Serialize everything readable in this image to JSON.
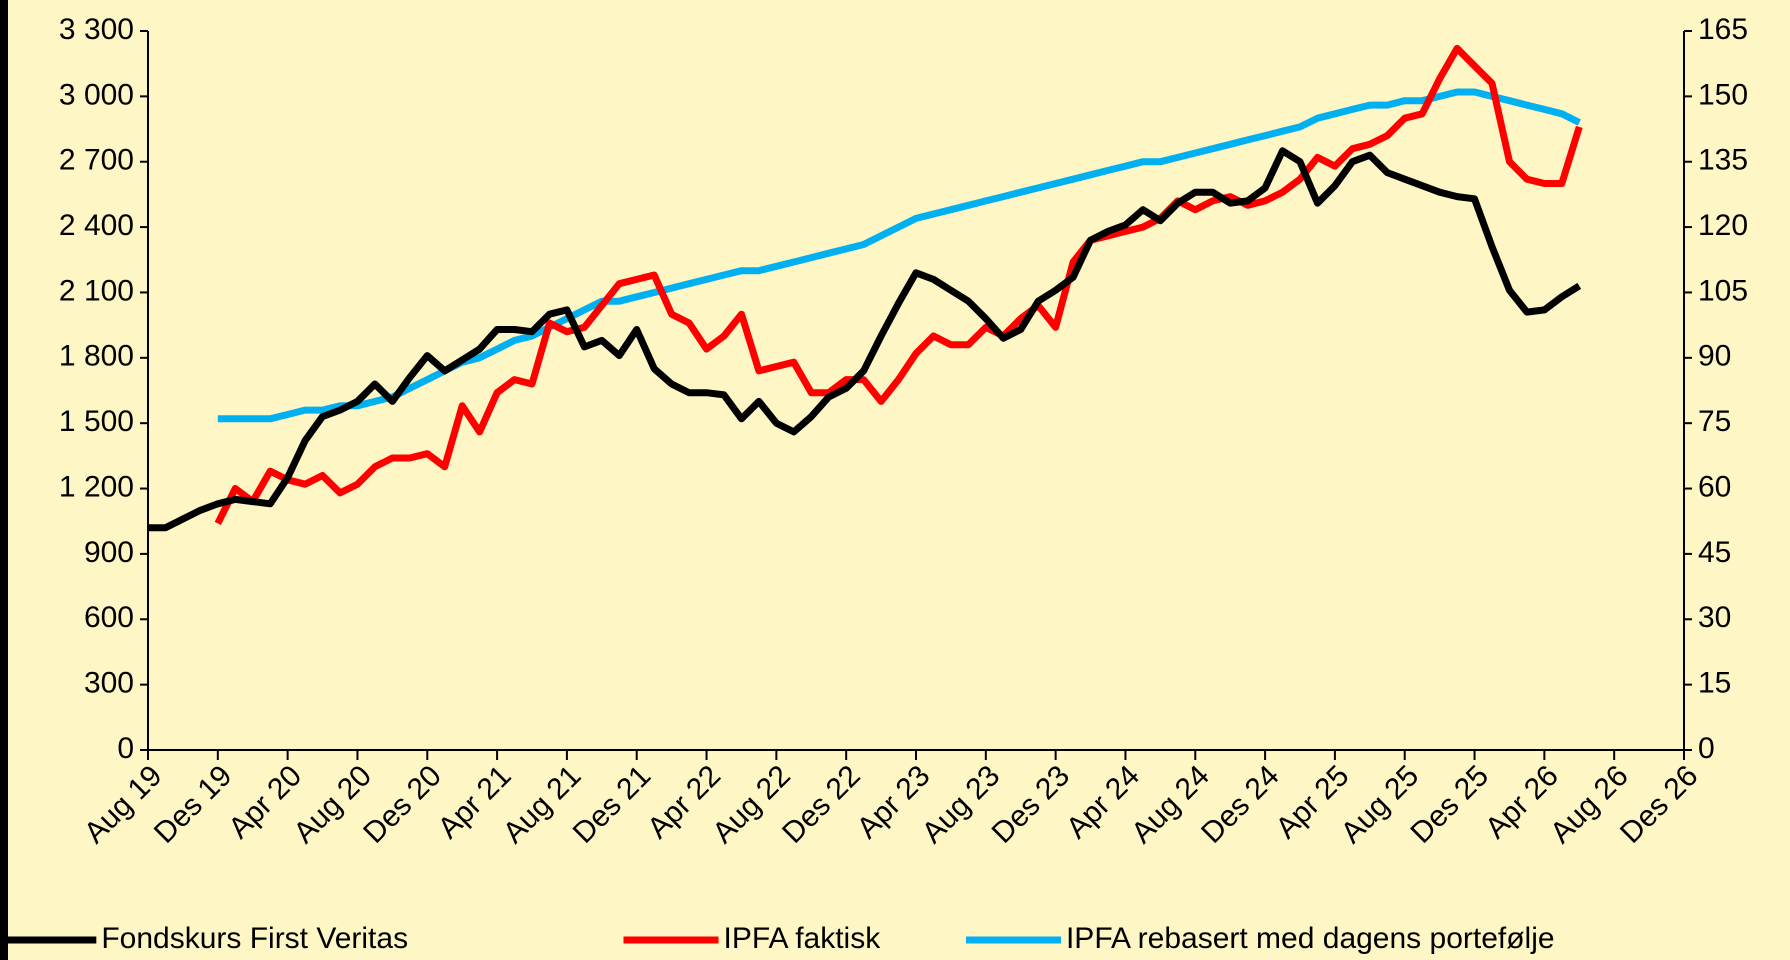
{
  "chart_data": {
    "type": "line",
    "categories": [
      "Aug 19",
      null,
      null,
      null,
      "Des 19",
      null,
      null,
      null,
      "Apr 20",
      null,
      null,
      null,
      "Aug 20",
      null,
      null,
      null,
      "Des 20",
      null,
      null,
      null,
      "Apr 21",
      null,
      null,
      null,
      "Aug 21",
      null,
      null,
      null,
      "Des 21",
      null,
      null,
      null,
      "Apr 22",
      null,
      null,
      null,
      "Aug 22",
      null,
      null,
      null,
      "Des 22",
      null,
      null,
      null,
      "Apr 23",
      null,
      null,
      null,
      "Aug 23",
      null,
      null,
      null,
      "Des 23",
      null,
      null,
      null,
      "Apr 24",
      null,
      null,
      null,
      "Aug 24",
      null,
      null,
      null,
      "Des 24",
      null,
      null,
      null,
      "Apr 25",
      null,
      null,
      null,
      "Aug 25",
      null,
      null,
      null,
      "Des 25",
      null,
      null,
      null,
      "Apr 26",
      null,
      null,
      null,
      "Aug 26",
      null,
      null,
      null,
      "Des 26"
    ],
    "series": [
      {
        "name": "Fondskurs First Veritas",
        "color": "#000000",
        "values": [
          1020,
          1020,
          1060,
          1100,
          1130,
          1150,
          1140,
          1130,
          1250,
          1420,
          1530,
          1560,
          1600,
          1680,
          1600,
          1710,
          1810,
          1740,
          1790,
          1840,
          1930,
          1930,
          1920,
          2000,
          2020,
          1850,
          1880,
          1810,
          1930,
          1750,
          1680,
          1640,
          1640,
          1630,
          1520,
          1600,
          1500,
          1460,
          1530,
          1620,
          1660,
          1740,
          1900,
          2050,
          2190,
          2160,
          2110,
          2060,
          1980,
          1890,
          1930,
          2060,
          2110,
          2170,
          2340,
          2380,
          2410,
          2480,
          2430,
          2510,
          2560,
          2560,
          2510,
          2520,
          2580,
          2750,
          2700,
          2510,
          2590,
          2700,
          2730,
          2650,
          2620,
          2590,
          2560,
          2540,
          2530,
          2310,
          2110,
          2010,
          2020,
          2080,
          2130,
          null,
          null,
          null,
          null,
          null,
          null
        ]
      },
      {
        "name": "IPFA faktisk",
        "color": "#ff0000",
        "axis": "y2",
        "values": [
          null,
          null,
          null,
          null,
          52,
          60,
          57,
          64,
          62,
          61,
          63,
          59,
          61,
          65,
          67,
          67,
          68,
          65,
          79,
          73,
          82,
          85,
          84,
          98,
          96,
          97,
          102,
          107,
          108,
          109,
          100,
          98,
          92,
          95,
          100,
          87,
          88,
          89,
          82,
          82,
          85,
          85,
          80,
          85,
          91,
          95,
          93,
          93,
          97,
          95,
          99,
          102,
          97,
          112,
          117,
          118,
          119,
          120,
          122,
          126,
          124,
          126,
          127,
          125,
          126,
          128,
          131,
          136,
          134,
          138,
          139,
          141,
          145,
          146,
          154,
          161,
          157,
          153,
          135,
          131,
          130,
          130,
          143,
          null,
          null,
          null,
          null,
          null,
          null
        ]
      },
      {
        "name": "IPFA rebasert med dagens portefølje",
        "color": "#00b0f0",
        "axis": "y2",
        "values": [
          null,
          null,
          null,
          null,
          76,
          76,
          76,
          76,
          77,
          78,
          78,
          79,
          79,
          80,
          81,
          83,
          85,
          87,
          89,
          90,
          92,
          94,
          95,
          97,
          99,
          101,
          103,
          103,
          104,
          105,
          106,
          107,
          108,
          109,
          110,
          110,
          111,
          112,
          113,
          114,
          115,
          116,
          118,
          120,
          122,
          123,
          124,
          125,
          126,
          127,
          128,
          129,
          130,
          131,
          132,
          133,
          134,
          135,
          135,
          136,
          137,
          138,
          139,
          140,
          141,
          142,
          143,
          145,
          146,
          147,
          148,
          148,
          149,
          149,
          150,
          151,
          151,
          150,
          149,
          148,
          147,
          146,
          144,
          null,
          null,
          null,
          null,
          null,
          null
        ]
      }
    ],
    "ylim": [
      0,
      3300
    ],
    "yticks": [
      0,
      300,
      600,
      900,
      {
        "value": 1200,
        "label": "1 200"
      },
      {
        "value": 1500,
        "label": "1 500"
      },
      {
        "value": 1800,
        "label": "1 800"
      },
      {
        "value": 2100,
        "label": "2 100"
      },
      {
        "value": 2400,
        "label": "2 400"
      },
      {
        "value": 2700,
        "label": "2 700"
      },
      {
        "value": 3000,
        "label": "3 000"
      },
      {
        "value": 3300,
        "label": "3 300"
      }
    ],
    "y2lim": [
      0,
      165
    ],
    "y2ticks": [
      0,
      15,
      30,
      45,
      60,
      75,
      90,
      105,
      120,
      135,
      150,
      165
    ],
    "legend": "bottom"
  }
}
